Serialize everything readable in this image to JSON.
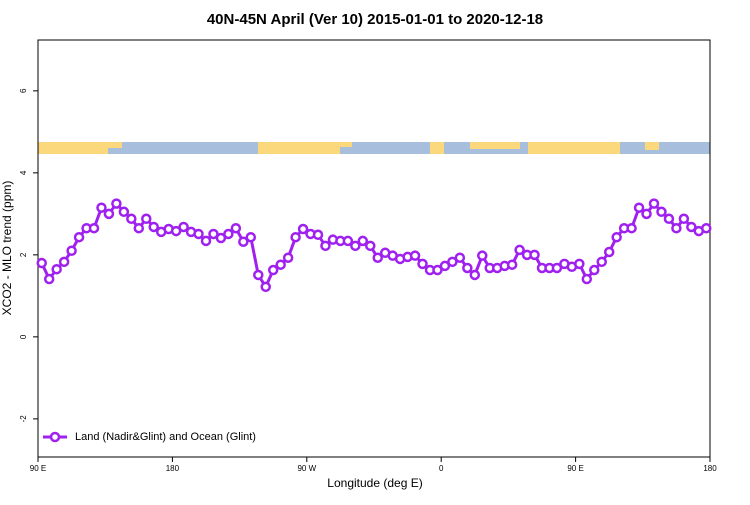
{
  "chart_data": {
    "type": "line",
    "title": "40N-45N April (Ver 10)   2015-01-01 to 2020-12-18",
    "x_label": "Longitude (deg E)",
    "y_label": "XCO2 - MLO trend (ppm)",
    "x": [
      92.5,
      97.5,
      102.5,
      107.5,
      112.5,
      117.5,
      122.5,
      127.5,
      132.5,
      137.5,
      142.5,
      147.5,
      152.5,
      157.5,
      162.5,
      167.5,
      172.5,
      177.5,
      182.5,
      187.5,
      192.5,
      197.5,
      202.5,
      207.5,
      212.5,
      217.5,
      222.5,
      227.5,
      232.5,
      237.5,
      242.5,
      247.5,
      252.5,
      257.5,
      262.5,
      267.5,
      272.5,
      277.5,
      282.5,
      287.5,
      292.5,
      297.5,
      302.5,
      307.5,
      312.5,
      317.5,
      322.5,
      327.5,
      332.5,
      337.5,
      342.5,
      347.5,
      352.5,
      357.5,
      362.5,
      367.5,
      372.5,
      377.5,
      382.5,
      387.5,
      392.5,
      397.5,
      402.5,
      407.5,
      412.5,
      417.5,
      422.5,
      427.5,
      432.5,
      437.5,
      442.5,
      447.5,
      452.5,
      457.5,
      462.5,
      467.5,
      472.5,
      477.5,
      482.5,
      487.5,
      492.5,
      497.5,
      502.5,
      507.5,
      512.5,
      517.5,
      522.5,
      527.5,
      532.5,
      537.5
    ],
    "series": [
      {
        "name": "Land (Nadir&Glint) and Ocean (Glint)",
        "color": "#a020f0",
        "values": [
          1.8,
          1.41,
          1.65,
          1.83,
          2.1,
          2.43,
          2.65,
          2.65,
          3.15,
          3.0,
          3.25,
          3.05,
          2.88,
          2.65,
          2.88,
          2.68,
          2.56,
          2.63,
          2.58,
          2.68,
          2.56,
          2.51,
          2.34,
          2.51,
          2.41,
          2.51,
          2.65,
          2.32,
          2.43,
          1.51,
          1.22,
          1.63,
          1.76,
          1.93,
          2.43,
          2.63,
          2.51,
          2.49,
          2.22,
          2.37,
          2.34,
          2.34,
          2.22,
          2.34,
          2.22,
          1.93,
          2.05,
          1.98,
          1.9,
          1.95,
          1.98,
          1.78,
          1.63,
          1.63,
          1.73,
          1.83,
          1.93,
          1.68,
          1.51,
          1.98,
          1.68,
          1.68,
          1.73,
          1.76,
          2.12,
          2.0,
          2.0,
          1.68,
          1.68,
          1.68,
          1.78,
          1.71,
          1.78,
          1.41,
          1.63,
          1.83,
          2.07,
          2.43,
          2.65,
          2.65,
          3.15,
          3.0,
          3.25,
          3.05,
          2.88,
          2.65,
          2.88,
          2.68,
          2.58,
          2.65
        ]
      }
    ],
    "xlim": [
      90,
      540
    ],
    "xticks": [
      {
        "value": 90,
        "label": "90 E"
      },
      {
        "value": 180,
        "label": "180"
      },
      {
        "value": 270,
        "label": "90 W"
      },
      {
        "value": 360,
        "label": "0"
      },
      {
        "value": 450,
        "label": "90 E"
      },
      {
        "value": 540,
        "label": "180"
      }
    ],
    "ylim": [
      -2.93,
      7.24
    ],
    "yticks": [
      -2,
      0,
      2,
      4,
      6
    ],
    "legend": "bottomleft"
  }
}
